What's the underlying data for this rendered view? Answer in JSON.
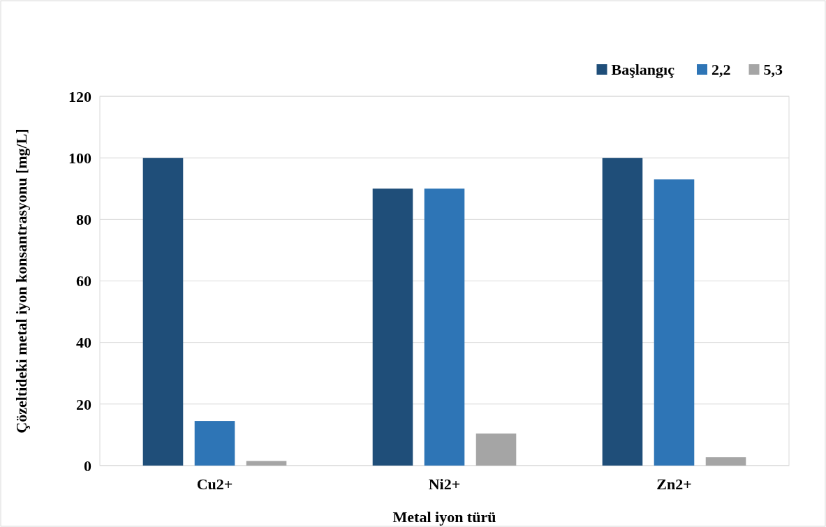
{
  "chart_data": {
    "type": "bar",
    "xlabel": "Metal iyon türü",
    "ylabel": "Çözeltideki metal iyon konsantrasyonu [mg/L]",
    "categories": [
      "Cu2+",
      "Ni2+",
      "Zn2+"
    ],
    "series": [
      {
        "name": "Başlangıç",
        "color": "#1f4e79",
        "values": [
          100,
          90,
          100
        ]
      },
      {
        "name": "2,2",
        "color": "#2e75b6",
        "values": [
          14.5,
          90,
          93
        ]
      },
      {
        "name": "5,3",
        "color": "#a5a5a5",
        "values": [
          1.5,
          10.4,
          2.7
        ]
      }
    ],
    "ylim": [
      0,
      120
    ],
    "yticks": [
      0,
      20,
      40,
      60,
      80,
      100,
      120
    ],
    "grid": "y",
    "legend": "top right"
  }
}
